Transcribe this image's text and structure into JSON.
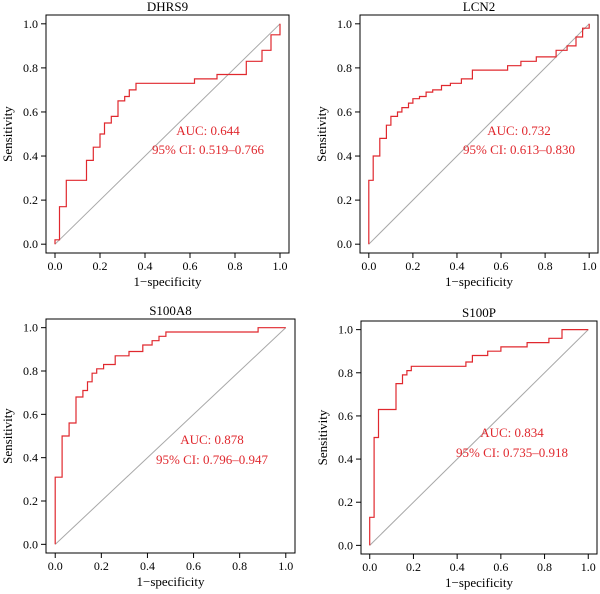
{
  "chart_data": [
    {
      "type": "line",
      "title": "DHRS9",
      "xlabel": "1−specificity",
      "ylabel": "Sensitivity",
      "xlim": [
        0,
        1
      ],
      "ylim": [
        0,
        1
      ],
      "xticks": [
        "0.0",
        "0.2",
        "0.4",
        "0.6",
        "0.8",
        "1.0"
      ],
      "yticks": [
        "0.0",
        "0.2",
        "0.4",
        "0.6",
        "0.8",
        "1.0"
      ],
      "annotations": [
        "AUC: 0.644",
        "95% CI: 0.519–0.766"
      ],
      "series": [
        {
          "x": [
            0,
            0,
            0.02,
            0.02,
            0.05,
            0.05,
            0.09,
            0.09,
            0.14,
            0.14,
            0.17,
            0.17,
            0.2,
            0.2,
            0.22,
            0.22,
            0.25,
            0.25,
            0.28,
            0.28,
            0.31,
            0.31,
            0.33,
            0.33,
            0.36,
            0.36,
            0.62,
            0.62,
            0.72,
            0.72,
            0.85,
            0.85,
            0.92,
            0.92,
            0.96,
            0.96,
            1.0,
            1.0
          ],
          "y": [
            0,
            0.02,
            0.02,
            0.17,
            0.17,
            0.29,
            0.29,
            0.29,
            0.29,
            0.38,
            0.38,
            0.44,
            0.44,
            0.5,
            0.5,
            0.55,
            0.55,
            0.58,
            0.58,
            0.65,
            0.65,
            0.67,
            0.67,
            0.7,
            0.7,
            0.73,
            0.73,
            0.75,
            0.75,
            0.77,
            0.77,
            0.83,
            0.83,
            0.88,
            0.88,
            0.95,
            0.95,
            1.0
          ]
        }
      ]
    },
    {
      "type": "line",
      "title": "LCN2",
      "xlabel": "1−specificity",
      "ylabel": "Sensitivity",
      "xlim": [
        0,
        1
      ],
      "ylim": [
        0,
        1
      ],
      "xticks": [
        "0.0",
        "0.2",
        "0.4",
        "0.6",
        "0.8",
        "1.0"
      ],
      "yticks": [
        "0.0",
        "0.2",
        "0.4",
        "0.6",
        "0.8",
        "1.0"
      ],
      "annotations": [
        "AUC: 0.732",
        "95% CI: 0.613–0.830"
      ],
      "series": [
        {
          "x": [
            0,
            0,
            0.02,
            0.02,
            0.05,
            0.05,
            0.08,
            0.08,
            0.1,
            0.1,
            0.13,
            0.13,
            0.15,
            0.15,
            0.18,
            0.18,
            0.2,
            0.2,
            0.23,
            0.23,
            0.26,
            0.26,
            0.29,
            0.29,
            0.33,
            0.33,
            0.37,
            0.37,
            0.42,
            0.42,
            0.47,
            0.47,
            0.63,
            0.63,
            0.69,
            0.69,
            0.76,
            0.76,
            0.85,
            0.85,
            0.9,
            0.9,
            0.94,
            0.94,
            0.97,
            0.97,
            1.0,
            1.0
          ],
          "y": [
            0,
            0.29,
            0.29,
            0.4,
            0.4,
            0.48,
            0.48,
            0.54,
            0.54,
            0.58,
            0.58,
            0.6,
            0.6,
            0.62,
            0.62,
            0.64,
            0.64,
            0.66,
            0.66,
            0.67,
            0.67,
            0.69,
            0.69,
            0.7,
            0.7,
            0.72,
            0.72,
            0.73,
            0.73,
            0.75,
            0.75,
            0.79,
            0.79,
            0.81,
            0.81,
            0.83,
            0.83,
            0.85,
            0.85,
            0.88,
            0.88,
            0.9,
            0.9,
            0.94,
            0.94,
            0.98,
            0.98,
            1.0
          ]
        }
      ]
    },
    {
      "type": "line",
      "title": "S100A8",
      "xlabel": "1−specificity",
      "ylabel": "Sensitivity",
      "xlim": [
        0,
        1
      ],
      "ylim": [
        0,
        1
      ],
      "xticks": [
        "0.0",
        "0.2",
        "0.4",
        "0.6",
        "0.8",
        "1.0"
      ],
      "yticks": [
        "0.0",
        "0.2",
        "0.4",
        "0.6",
        "0.8",
        "1.0"
      ],
      "annotations": [
        "AUC: 0.878",
        "95% CI: 0.796–0.947"
      ],
      "series": [
        {
          "x": [
            0,
            0,
            0.03,
            0.03,
            0.06,
            0.06,
            0.09,
            0.09,
            0.12,
            0.12,
            0.14,
            0.14,
            0.16,
            0.16,
            0.18,
            0.18,
            0.21,
            0.21,
            0.26,
            0.26,
            0.32,
            0.32,
            0.38,
            0.38,
            0.42,
            0.42,
            0.45,
            0.45,
            0.48,
            0.48,
            0.5,
            0.5,
            0.88,
            0.88,
            1.0
          ],
          "y": [
            0,
            0.31,
            0.31,
            0.5,
            0.5,
            0.56,
            0.56,
            0.68,
            0.68,
            0.71,
            0.71,
            0.75,
            0.75,
            0.79,
            0.79,
            0.81,
            0.81,
            0.83,
            0.83,
            0.87,
            0.87,
            0.89,
            0.89,
            0.92,
            0.92,
            0.94,
            0.94,
            0.96,
            0.96,
            0.98,
            0.98,
            0.98,
            0.98,
            1.0,
            1.0
          ]
        }
      ]
    },
    {
      "type": "line",
      "title": "S100P",
      "xlabel": "1−specificity",
      "ylabel": "Sensitivity",
      "xlim": [
        0,
        1
      ],
      "ylim": [
        0,
        1
      ],
      "xticks": [
        "0.0",
        "0.2",
        "0.4",
        "0.6",
        "0.8",
        "1.0"
      ],
      "yticks": [
        "0.0",
        "0.2",
        "0.4",
        "0.6",
        "0.8",
        "1.0"
      ],
      "annotations": [
        "AUC: 0.834",
        "95% CI: 0.735–0.918"
      ],
      "series": [
        {
          "x": [
            0,
            0,
            0.02,
            0.02,
            0.04,
            0.04,
            0.06,
            0.06,
            0.12,
            0.12,
            0.15,
            0.15,
            0.17,
            0.17,
            0.19,
            0.19,
            0.44,
            0.44,
            0.47,
            0.47,
            0.54,
            0.54,
            0.6,
            0.6,
            0.72,
            0.72,
            0.82,
            0.82,
            0.88,
            0.88,
            0.91,
            0.91,
            1.0
          ],
          "y": [
            0,
            0.13,
            0.13,
            0.5,
            0.5,
            0.63,
            0.63,
            0.63,
            0.63,
            0.75,
            0.75,
            0.79,
            0.79,
            0.81,
            0.81,
            0.83,
            0.83,
            0.85,
            0.85,
            0.88,
            0.88,
            0.9,
            0.9,
            0.92,
            0.92,
            0.94,
            0.94,
            0.96,
            0.96,
            1.0,
            1.0,
            1.0,
            1.0
          ]
        }
      ]
    }
  ]
}
